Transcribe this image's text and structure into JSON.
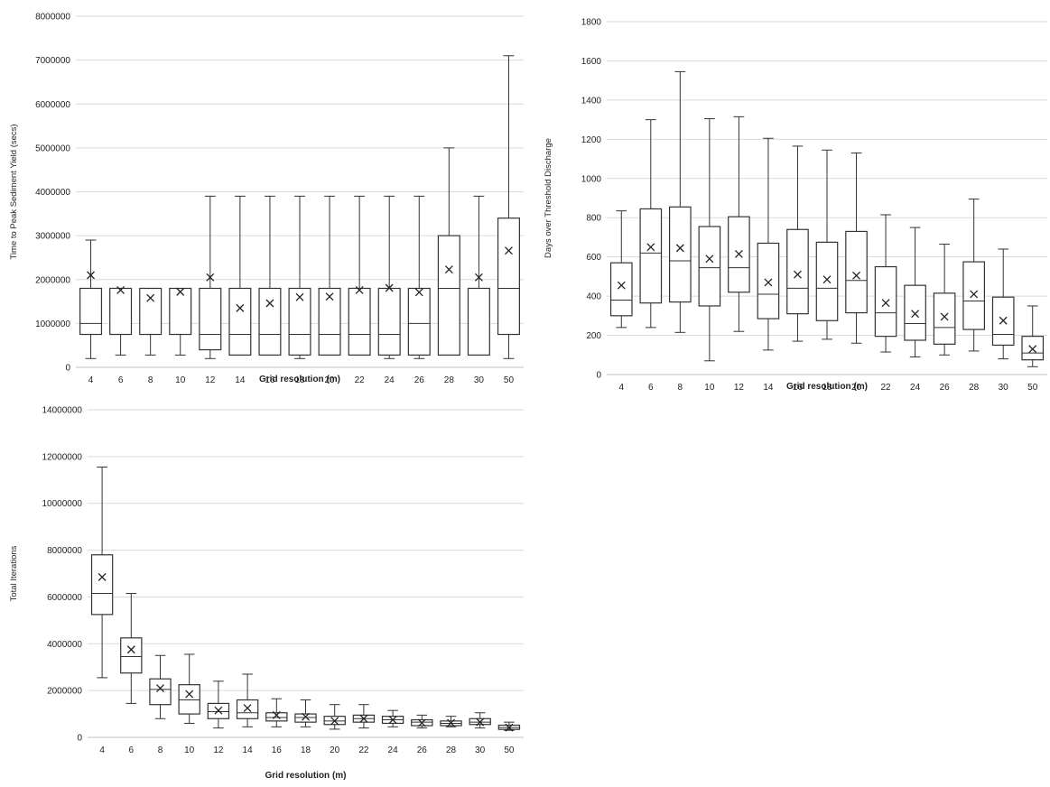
{
  "chart_data": [
    {
      "type": "box",
      "xlabel": "Grid resolution (m)",
      "ylabel": "Time to Peak Sediment Yield (secs)",
      "ylim": [
        0,
        8000000
      ],
      "yticks": [
        0,
        1000000,
        2000000,
        3000000,
        4000000,
        5000000,
        6000000,
        7000000,
        8000000
      ],
      "grid": true,
      "categories": [
        "4",
        "6",
        "8",
        "10",
        "12",
        "14",
        "16",
        "18",
        "20",
        "22",
        "24",
        "26",
        "28",
        "30",
        "50"
      ],
      "boxes": [
        {
          "min": 200000,
          "q1": 750000,
          "median": 1000000,
          "q3": 1800000,
          "max": 2900000,
          "mean": 2100000
        },
        {
          "min": 280000,
          "q1": 750000,
          "median": 1800000,
          "q3": 1800000,
          "max": 1800000,
          "mean": 1760000
        },
        {
          "min": 280000,
          "q1": 750000,
          "median": 750000,
          "q3": 1800000,
          "max": 1800000,
          "mean": 1580000
        },
        {
          "min": 280000,
          "q1": 750000,
          "median": 1800000,
          "q3": 1800000,
          "max": 1800000,
          "mean": 1720000
        },
        {
          "min": 200000,
          "q1": 400000,
          "median": 750000,
          "q3": 1800000,
          "max": 3900000,
          "mean": 2050000
        },
        {
          "min": 280000,
          "q1": 280000,
          "median": 750000,
          "q3": 1800000,
          "max": 3900000,
          "mean": 1350000
        },
        {
          "min": 280000,
          "q1": 280000,
          "median": 750000,
          "q3": 1800000,
          "max": 3900000,
          "mean": 1460000
        },
        {
          "min": 200000,
          "q1": 280000,
          "median": 750000,
          "q3": 1800000,
          "max": 3900000,
          "mean": 1600000
        },
        {
          "min": 280000,
          "q1": 280000,
          "median": 750000,
          "q3": 1800000,
          "max": 3900000,
          "mean": 1610000
        },
        {
          "min": 280000,
          "q1": 280000,
          "median": 750000,
          "q3": 1800000,
          "max": 3900000,
          "mean": 1760000
        },
        {
          "min": 200000,
          "q1": 280000,
          "median": 750000,
          "q3": 1800000,
          "max": 3900000,
          "mean": 1810000
        },
        {
          "min": 200000,
          "q1": 280000,
          "median": 1000000,
          "q3": 1800000,
          "max": 3900000,
          "mean": 1710000
        },
        {
          "min": 280000,
          "q1": 280000,
          "median": 1800000,
          "q3": 3000000,
          "max": 5000000,
          "mean": 2230000
        },
        {
          "min": 280000,
          "q1": 280000,
          "median": 1800000,
          "q3": 1800000,
          "max": 3900000,
          "mean": 2050000
        },
        {
          "min": 200000,
          "q1": 750000,
          "median": 1800000,
          "q3": 3400000,
          "max": 7100000,
          "mean": 2660000
        }
      ]
    },
    {
      "type": "box",
      "xlabel": "Grid resolution (m)",
      "ylabel": "Days over Threshold Discharge",
      "ylim": [
        0,
        1800
      ],
      "yticks": [
        0,
        200,
        400,
        600,
        800,
        1000,
        1200,
        1400,
        1600,
        1800
      ],
      "grid": true,
      "categories": [
        "4",
        "6",
        "8",
        "10",
        "12",
        "14",
        "16",
        "18",
        "20",
        "22",
        "24",
        "26",
        "28",
        "30",
        "50"
      ],
      "boxes": [
        {
          "min": 240,
          "q1": 300,
          "median": 380,
          "q3": 570,
          "max": 835,
          "mean": 455
        },
        {
          "min": 240,
          "q1": 365,
          "median": 620,
          "q3": 845,
          "max": 1300,
          "mean": 650
        },
        {
          "min": 215,
          "q1": 370,
          "median": 580,
          "q3": 855,
          "max": 1545,
          "mean": 645
        },
        {
          "min": 70,
          "q1": 350,
          "median": 545,
          "q3": 755,
          "max": 1305,
          "mean": 590
        },
        {
          "min": 220,
          "q1": 420,
          "median": 545,
          "q3": 805,
          "max": 1315,
          "mean": 615
        },
        {
          "min": 125,
          "q1": 285,
          "median": 410,
          "q3": 670,
          "max": 1205,
          "mean": 470
        },
        {
          "min": 170,
          "q1": 310,
          "median": 440,
          "q3": 740,
          "max": 1165,
          "mean": 510
        },
        {
          "min": 180,
          "q1": 275,
          "median": 440,
          "q3": 675,
          "max": 1145,
          "mean": 485
        },
        {
          "min": 160,
          "q1": 315,
          "median": 480,
          "q3": 730,
          "max": 1130,
          "mean": 505
        },
        {
          "min": 115,
          "q1": 195,
          "median": 315,
          "q3": 550,
          "max": 815,
          "mean": 365
        },
        {
          "min": 90,
          "q1": 175,
          "median": 260,
          "q3": 455,
          "max": 750,
          "mean": 310
        },
        {
          "min": 100,
          "q1": 155,
          "median": 240,
          "q3": 415,
          "max": 665,
          "mean": 295
        },
        {
          "min": 120,
          "q1": 230,
          "median": 375,
          "q3": 575,
          "max": 895,
          "mean": 410
        },
        {
          "min": 80,
          "q1": 150,
          "median": 205,
          "q3": 395,
          "max": 640,
          "mean": 275
        },
        {
          "min": 40,
          "q1": 75,
          "median": 110,
          "q3": 195,
          "max": 350,
          "mean": 130
        }
      ]
    },
    {
      "type": "box",
      "xlabel": "Grid resolution (m)",
      "ylabel": "Total Iterations",
      "ylim": [
        0,
        14000000
      ],
      "yticks": [
        0,
        2000000,
        4000000,
        6000000,
        8000000,
        10000000,
        12000000,
        14000000
      ],
      "grid": true,
      "categories": [
        "4",
        "6",
        "8",
        "10",
        "12",
        "14",
        "16",
        "18",
        "20",
        "22",
        "24",
        "26",
        "28",
        "30",
        "50"
      ],
      "boxes": [
        {
          "min": 2550000,
          "q1": 5250000,
          "median": 6150000,
          "q3": 7800000,
          "max": 11550000,
          "mean": 6850000
        },
        {
          "min": 1450000,
          "q1": 2750000,
          "median": 3450000,
          "q3": 4250000,
          "max": 6150000,
          "mean": 3750000
        },
        {
          "min": 800000,
          "q1": 1400000,
          "median": 2050000,
          "q3": 2500000,
          "max": 3500000,
          "mean": 2100000
        },
        {
          "min": 600000,
          "q1": 1000000,
          "median": 1600000,
          "q3": 2250000,
          "max": 3550000,
          "mean": 1850000
        },
        {
          "min": 400000,
          "q1": 800000,
          "median": 1100000,
          "q3": 1450000,
          "max": 2400000,
          "mean": 1150000
        },
        {
          "min": 450000,
          "q1": 800000,
          "median": 1050000,
          "q3": 1600000,
          "max": 2700000,
          "mean": 1250000
        },
        {
          "min": 450000,
          "q1": 700000,
          "median": 850000,
          "q3": 1050000,
          "max": 1650000,
          "mean": 950000
        },
        {
          "min": 450000,
          "q1": 650000,
          "median": 850000,
          "q3": 1000000,
          "max": 1600000,
          "mean": 880000
        },
        {
          "min": 350000,
          "q1": 550000,
          "median": 700000,
          "q3": 900000,
          "max": 1400000,
          "mean": 700000
        },
        {
          "min": 400000,
          "q1": 650000,
          "median": 800000,
          "q3": 950000,
          "max": 1400000,
          "mean": 800000
        },
        {
          "min": 450000,
          "q1": 600000,
          "median": 750000,
          "q3": 900000,
          "max": 1150000,
          "mean": 750000
        },
        {
          "min": 400000,
          "q1": 500000,
          "median": 650000,
          "q3": 750000,
          "max": 950000,
          "mean": 620000
        },
        {
          "min": 450000,
          "q1": 500000,
          "median": 600000,
          "q3": 700000,
          "max": 900000,
          "mean": 620000
        },
        {
          "min": 400000,
          "q1": 550000,
          "median": 650000,
          "q3": 800000,
          "max": 1050000,
          "mean": 650000
        },
        {
          "min": 300000,
          "q1": 340000,
          "median": 420000,
          "q3": 520000,
          "max": 650000,
          "mean": 420000
        }
      ]
    }
  ]
}
